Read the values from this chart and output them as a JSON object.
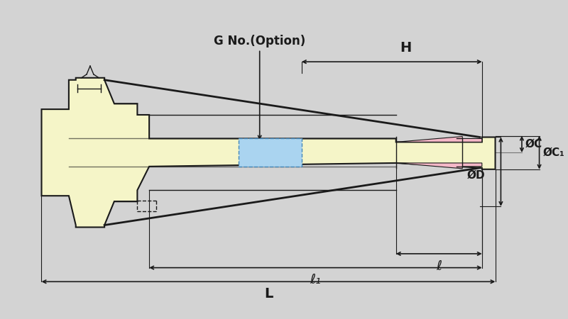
{
  "bg_color": "#d3d3d3",
  "body_color": "#f5f5c8",
  "pink_color": "#f5b8c8",
  "blue_color": "#aad4f0",
  "line_color": "#1a1a1a",
  "annotation_label": "G No.(Option)",
  "dim_labels": {
    "H": "H",
    "C": "ØC",
    "C1": "ØC₁",
    "D": "ØD",
    "l": "ℓ",
    "l1": "ℓ₁",
    "L": "L"
  }
}
